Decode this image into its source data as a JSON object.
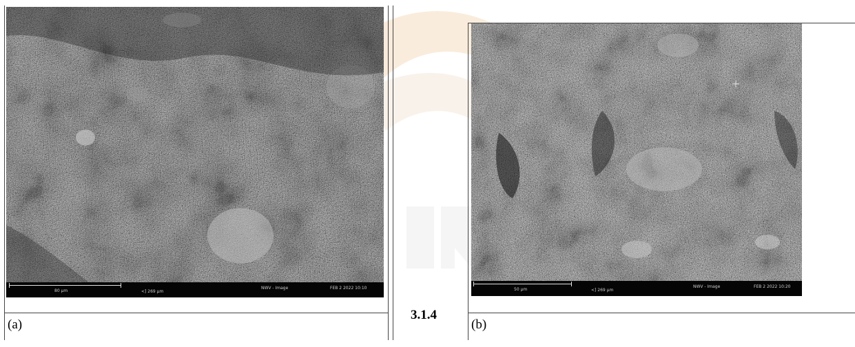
{
  "section_number": "3.1.4",
  "figures": [
    {
      "caption": "(a)",
      "scale_label": "80 µm",
      "width_label": "<] 269 µm",
      "mode": "NWV - Image",
      "date": "FEB 2 2022 10:10"
    },
    {
      "caption": "(b)",
      "scale_label": "50 µm",
      "width_label": "<] 269 µm",
      "mode": "NWV - Image",
      "date": "FEB 2 2022 10:20"
    }
  ],
  "colors": {
    "grid_line": "#444444",
    "sem_bar": "#050505",
    "watermark": "#f3e3cf"
  }
}
